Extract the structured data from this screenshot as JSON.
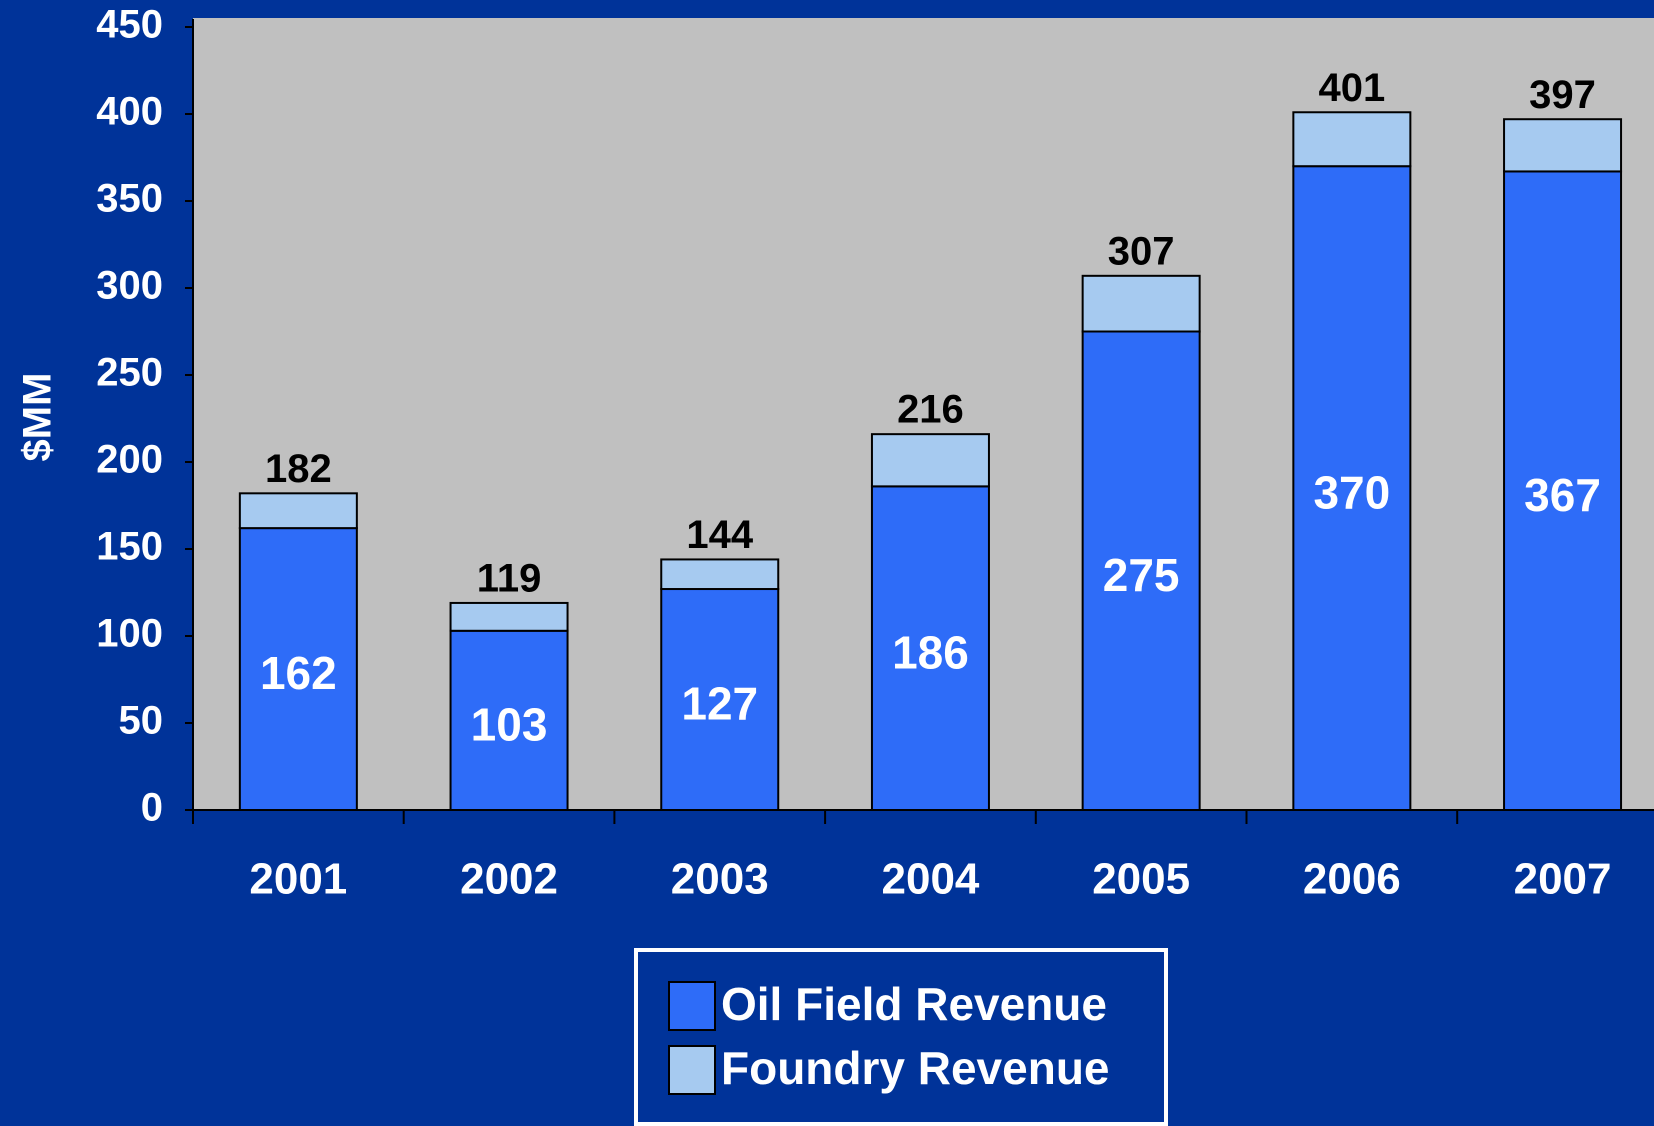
{
  "chart_data": {
    "type": "stacked_bar",
    "y_label": "$MM",
    "categories": [
      "2001",
      "2002",
      "2003",
      "2004",
      "2005",
      "2006",
      "2007"
    ],
    "series": [
      {
        "name": "Oil Field Revenue",
        "color": "#2e6cf8",
        "values": [
          162,
          103,
          127,
          186,
          275,
          370,
          367
        ]
      },
      {
        "name": "Foundry Revenue",
        "color": "#a6caf0",
        "values": [
          20,
          16,
          17,
          30,
          32,
          31,
          30
        ]
      }
    ],
    "totals": [
      182,
      119,
      144,
      216,
      307,
      401,
      397
    ],
    "ylim": [
      0,
      450
    ],
    "yticks": [
      0,
      50,
      100,
      150,
      200,
      250,
      300,
      350,
      400,
      450
    ],
    "legend": "bottom"
  }
}
